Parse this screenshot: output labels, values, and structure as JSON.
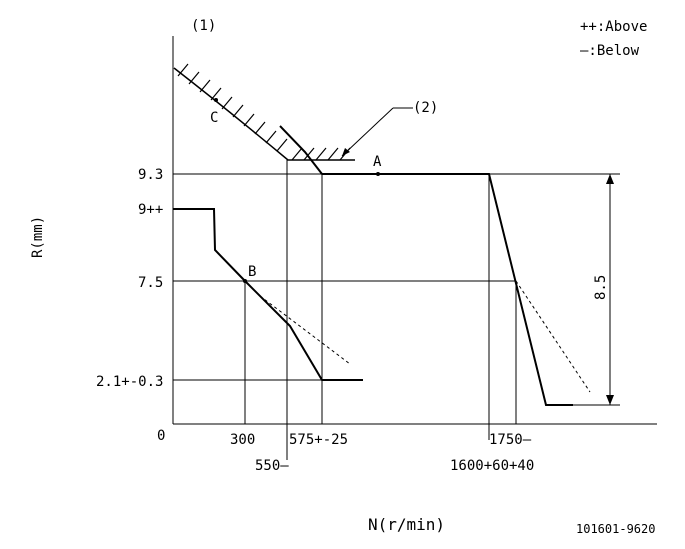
{
  "figure_id": "101601-9620",
  "markers": {
    "one": "(1)",
    "two": "(2)"
  },
  "legend": {
    "above": "++:Above",
    "below": "—:Below"
  },
  "axes": {
    "y_title": "R(mm)",
    "x_title": "N(r/min)",
    "y_ticks": [
      "9.3",
      "9++",
      "7.5",
      "2.1+-0.3",
      "0"
    ],
    "x_ticks": [
      "300",
      "575+-25",
      "550—",
      "1750—",
      "1600+60+40"
    ]
  },
  "points": {
    "a": "A",
    "b": "B",
    "c": "C"
  },
  "dimension": "8.5"
}
